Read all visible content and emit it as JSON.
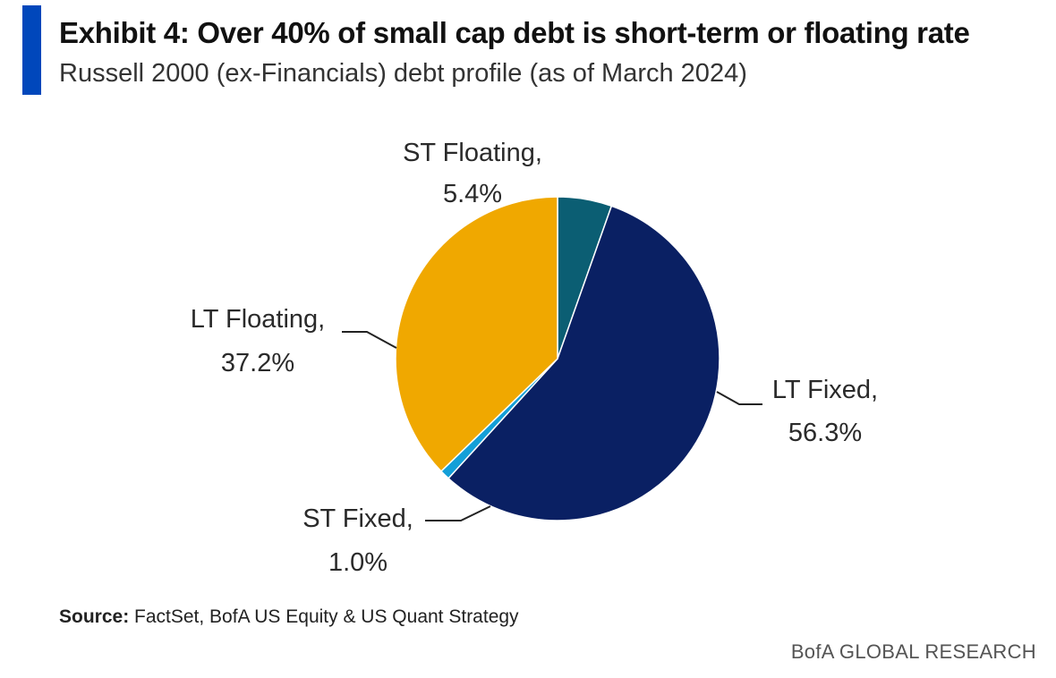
{
  "header": {
    "title": "Exhibit 4: Over 40% of small cap debt is short-term or floating rate",
    "subtitle": "Russell 2000 (ex-Financials) debt profile (as of March 2024)",
    "accent_color": "#0047bb"
  },
  "chart_data": {
    "type": "pie",
    "title": "Exhibit 4: Over 40% of small cap debt is short-term or floating rate",
    "subtitle": "Russell 2000 (ex-Financials) debt profile (as of March 2024)",
    "slices": [
      {
        "name": "ST Floating",
        "value": 5.4,
        "display": "5.4%",
        "color": "#0b5e73"
      },
      {
        "name": "LT Fixed",
        "value": 56.3,
        "display": "56.3%",
        "color": "#0a2063"
      },
      {
        "name": "ST Fixed",
        "value": 1.0,
        "display": "1.0%",
        "color": "#139fd8"
      },
      {
        "name": "LT Floating",
        "value": 37.2,
        "display": "37.2%",
        "color": "#f0a800"
      }
    ],
    "legend": "none"
  },
  "footer": {
    "source_label": "Source:",
    "source_text": " FactSet, BofA US Equity & US Quant Strategy",
    "brand": "BofA GLOBAL RESEARCH"
  }
}
